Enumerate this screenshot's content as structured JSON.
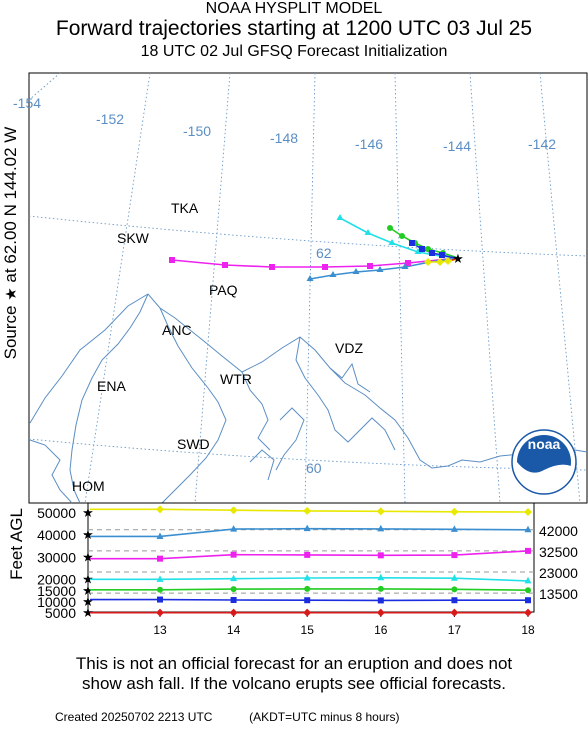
{
  "header": {
    "line1": "NOAA HYSPLIT MODEL",
    "line2": "Forward trajectories starting at 1200 UTC 03 Jul 25",
    "line3": "18 UTC 02 Jul    GFSQ  Forecast Initialization"
  },
  "source_label": {
    "prefix": "Source",
    "star": "★",
    "text": "at    62.00 N  144.02 W"
  },
  "map": {
    "longitude_labels": [
      "-154",
      "-152",
      "-150",
      "-148",
      "-146",
      "-144",
      "-142"
    ],
    "latitude_labels": [
      "62",
      "60"
    ],
    "places": [
      "TKA",
      "SKW",
      "PAQ",
      "ANC",
      "VDZ",
      "WTR",
      "ENA",
      "SWD",
      "HOM"
    ],
    "logo_text": "noaa"
  },
  "chart_data": {
    "type": "line",
    "x_label": "",
    "y_label": "Feet AGL",
    "x_ticks": [
      "13",
      "14",
      "15",
      "16",
      "17",
      "18"
    ],
    "y_ticks": [
      "50000",
      "40000",
      "30000",
      "20000",
      "15000",
      "10000",
      "5000"
    ],
    "right_labels": [
      "42000",
      "32500",
      "23000",
      "13500"
    ],
    "series": [
      {
        "color": "#e8e800",
        "hours_ago": [
          0,
          6,
          12,
          18,
          24,
          30
        ],
        "values": [
          50000,
          50100,
          50300,
          50500,
          50800,
          51200
        ]
      },
      {
        "color": "#3b8fd0",
        "hours_ago": [
          0,
          6,
          12,
          18,
          24,
          30
        ],
        "values": [
          42000,
          42200,
          42400,
          42500,
          42300,
          39000
        ]
      },
      {
        "color": "#ee22ee",
        "hours_ago": [
          0,
          6,
          12,
          18,
          24,
          30
        ],
        "values": [
          32500,
          30600,
          30500,
          30700,
          30800,
          29000
        ]
      },
      {
        "color": "#22e0e8",
        "hours_ago": [
          0,
          6,
          12,
          18,
          24,
          30
        ],
        "values": [
          19000,
          20200,
          20400,
          20300,
          20000,
          19700
        ]
      },
      {
        "color": "#22cc22",
        "hours_ago": [
          0,
          6,
          12,
          18,
          24,
          30
        ],
        "values": [
          14800,
          15200,
          15400,
          15400,
          15300,
          15000
        ]
      },
      {
        "color": "#1a2ee0",
        "hours_ago": [
          0,
          6,
          12,
          18,
          24,
          30
        ],
        "values": [
          10300,
          10300,
          10200,
          10300,
          10400,
          10600
        ]
      },
      {
        "color": "#d81a1a",
        "hours_ago": [
          0,
          6,
          12,
          18,
          24,
          30
        ],
        "values": [
          4700,
          4700,
          4700,
          4700,
          4700,
          4700
        ]
      }
    ]
  },
  "disclaimer": {
    "line1": "This is not an official forecast for an eruption and does not",
    "line2": "show ash fall. If the volcano erupts see official forecasts."
  },
  "footer": {
    "created": "Created 20250702 2213 UTC",
    "note": "(AKDT=UTC minus 8 hours)"
  }
}
